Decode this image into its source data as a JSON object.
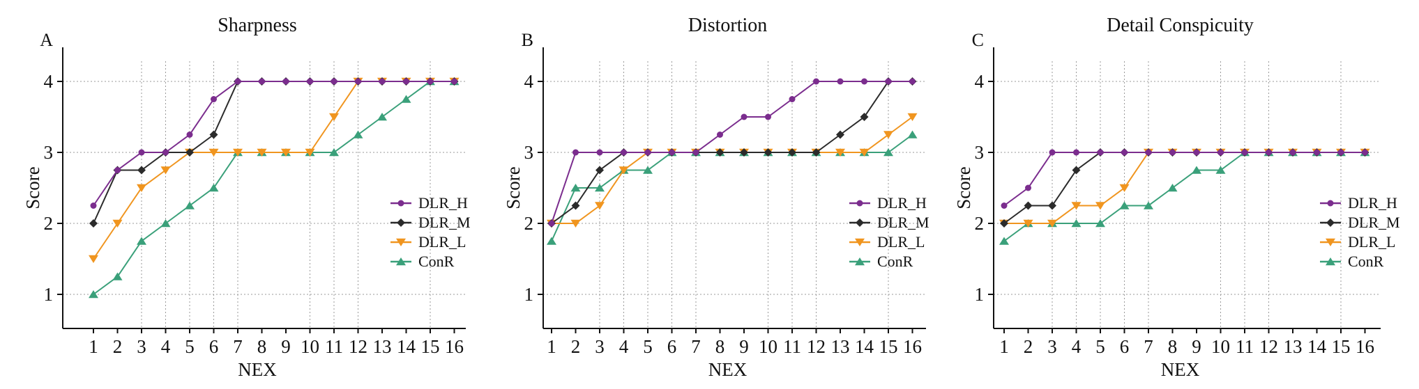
{
  "chart_data": [
    {
      "type": "line",
      "panel": "A",
      "title": "Sharpness",
      "xlabel": "NEX",
      "ylabel": "Score",
      "x": [
        1,
        2,
        3,
        4,
        5,
        6,
        7,
        8,
        9,
        10,
        11,
        12,
        13,
        14,
        15,
        16
      ],
      "ylim": [
        0.5,
        4.5
      ],
      "yticks": [
        1,
        2,
        3,
        4
      ],
      "grid": "dotted",
      "legend_position": "right",
      "series": [
        {
          "name": "DLR_H",
          "color": "#7b2d8e",
          "marker": "circle",
          "values": [
            2.25,
            2.75,
            3,
            3,
            3.25,
            3.75,
            4,
            4,
            4,
            4,
            4,
            4,
            4,
            4,
            4,
            4
          ]
        },
        {
          "name": "DLR_M",
          "color": "#2b2b2b",
          "marker": "diamond",
          "values": [
            2,
            2.75,
            2.75,
            3,
            3,
            3.25,
            4,
            4,
            4,
            4,
            4,
            4,
            4,
            4,
            4,
            4
          ]
        },
        {
          "name": "DLR_L",
          "color": "#f0951f",
          "marker": "triangle-down",
          "values": [
            1.5,
            2,
            2.5,
            2.75,
            3,
            3,
            3,
            3,
            3,
            3,
            3.5,
            4,
            4,
            4,
            4,
            4
          ]
        },
        {
          "name": "ConR",
          "color": "#3aa07a",
          "marker": "triangle-up",
          "values": [
            1,
            1.25,
            1.75,
            2,
            2.25,
            2.5,
            3,
            3,
            3,
            3,
            3,
            3.25,
            3.5,
            3.75,
            4,
            4
          ]
        }
      ]
    },
    {
      "type": "line",
      "panel": "B",
      "title": "Distortion",
      "xlabel": "NEX",
      "ylabel": "Score",
      "x": [
        1,
        2,
        3,
        4,
        5,
        6,
        7,
        8,
        9,
        10,
        11,
        12,
        13,
        14,
        15,
        16
      ],
      "ylim": [
        0.5,
        4.5
      ],
      "yticks": [
        1,
        2,
        3,
        4
      ],
      "grid": "dotted",
      "legend_position": "right",
      "series": [
        {
          "name": "DLR_H",
          "color": "#7b2d8e",
          "marker": "circle",
          "values": [
            2,
            3,
            3,
            3,
            3,
            3,
            3,
            3.25,
            3.5,
            3.5,
            3.75,
            4,
            4,
            4,
            4,
            4
          ]
        },
        {
          "name": "DLR_M",
          "color": "#2b2b2b",
          "marker": "diamond",
          "values": [
            2,
            2.25,
            2.75,
            3,
            3,
            3,
            3,
            3,
            3,
            3,
            3,
            3,
            3.25,
            3.5,
            4,
            4
          ]
        },
        {
          "name": "DLR_L",
          "color": "#f0951f",
          "marker": "triangle-down",
          "values": [
            2,
            2,
            2.25,
            2.75,
            3,
            3,
            3,
            3,
            3,
            3,
            3,
            3,
            3,
            3,
            3.25,
            3.5
          ]
        },
        {
          "name": "ConR",
          "color": "#3aa07a",
          "marker": "triangle-up",
          "values": [
            1.75,
            2.5,
            2.5,
            2.75,
            2.75,
            3,
            3,
            3,
            3,
            3,
            3,
            3,
            3,
            3,
            3,
            3.25
          ]
        }
      ]
    },
    {
      "type": "line",
      "panel": "C",
      "title": "Detail Conspicuity",
      "xlabel": "NEX",
      "ylabel": "Score",
      "x": [
        1,
        2,
        3,
        4,
        5,
        6,
        7,
        8,
        9,
        10,
        11,
        12,
        13,
        14,
        15,
        16
      ],
      "ylim": [
        0.5,
        4.5
      ],
      "yticks": [
        1,
        2,
        3,
        4
      ],
      "grid": "dotted",
      "legend_position": "right",
      "series": [
        {
          "name": "DLR_H",
          "color": "#7b2d8e",
          "marker": "circle",
          "values": [
            2.25,
            2.5,
            3,
            3,
            3,
            3,
            3,
            3,
            3,
            3,
            3,
            3,
            3,
            3,
            3,
            3
          ]
        },
        {
          "name": "DLR_M",
          "color": "#2b2b2b",
          "marker": "diamond",
          "values": [
            2,
            2.25,
            2.25,
            2.75,
            3,
            3,
            3,
            3,
            3,
            3,
            3,
            3,
            3,
            3,
            3,
            3
          ]
        },
        {
          "name": "DLR_L",
          "color": "#f0951f",
          "marker": "triangle-down",
          "values": [
            2,
            2,
            2,
            2.25,
            2.25,
            2.5,
            3,
            3,
            3,
            3,
            3,
            3,
            3,
            3,
            3,
            3
          ]
        },
        {
          "name": "ConR",
          "color": "#3aa07a",
          "marker": "triangle-up",
          "values": [
            1.75,
            2,
            2,
            2,
            2,
            2.25,
            2.25,
            2.5,
            2.75,
            2.75,
            3,
            3,
            3,
            3,
            3,
            3
          ]
        }
      ]
    }
  ]
}
